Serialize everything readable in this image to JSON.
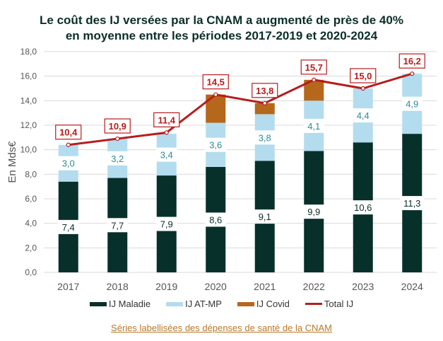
{
  "chart_data": {
    "type": "bar",
    "title": "Le coût des IJ versées par la CNAM a augmenté de près de 40% en moyenne entre les périodes 2017-2019 et 2020-2024",
    "title_lines": [
      "Le coût des IJ versées par la CNAM a augmenté de près de 40%",
      "en moyenne entre les périodes 2017-2019 et 2020-2024"
    ],
    "ylabel": "En Mds€",
    "ylim": [
      0,
      18
    ],
    "yticks": [
      "0,0",
      "2,0",
      "4,0",
      "6,0",
      "8,0",
      "10,0",
      "12,0",
      "14,0",
      "16,0",
      "18,0"
    ],
    "grid": true,
    "legend_position": "bottom",
    "categories": [
      "2017",
      "2018",
      "2019",
      "2020",
      "2021",
      "2022",
      "2023",
      "2024"
    ],
    "series": [
      {
        "name": "IJ Maladie",
        "kind": "bar",
        "color": "#07302b",
        "values": [
          7.4,
          7.7,
          7.9,
          8.6,
          9.1,
          9.9,
          10.6,
          11.3
        ],
        "labels": [
          "7,4",
          "7,7",
          "7,9",
          "8,6",
          "9,1",
          "9,9",
          "10,6",
          "11,3"
        ]
      },
      {
        "name": "IJ AT-MP",
        "kind": "bar",
        "color": "#b3dcef",
        "values": [
          3.0,
          3.2,
          3.4,
          3.6,
          3.8,
          4.1,
          4.4,
          4.9
        ],
        "labels": [
          "3,0",
          "3,2",
          "3,4",
          "3,6",
          "3,8",
          "4,1",
          "4,4",
          "4,9"
        ]
      },
      {
        "name": "IJ Covid",
        "kind": "bar",
        "color": "#b5671c",
        "values": [
          0,
          0,
          0,
          2.3,
          0.9,
          1.7,
          0,
          0
        ]
      },
      {
        "name": "Total IJ",
        "kind": "line",
        "color": "#b71c1c",
        "values": [
          10.4,
          10.9,
          11.4,
          14.5,
          13.8,
          15.7,
          15.0,
          16.2
        ],
        "labels": [
          "10,4",
          "10,9",
          "11,4",
          "14,5",
          "13,8",
          "15,7",
          "15,0",
          "16,2"
        ]
      }
    ]
  },
  "source": "Séries labellisées des dépenses de santé de la CNAM"
}
